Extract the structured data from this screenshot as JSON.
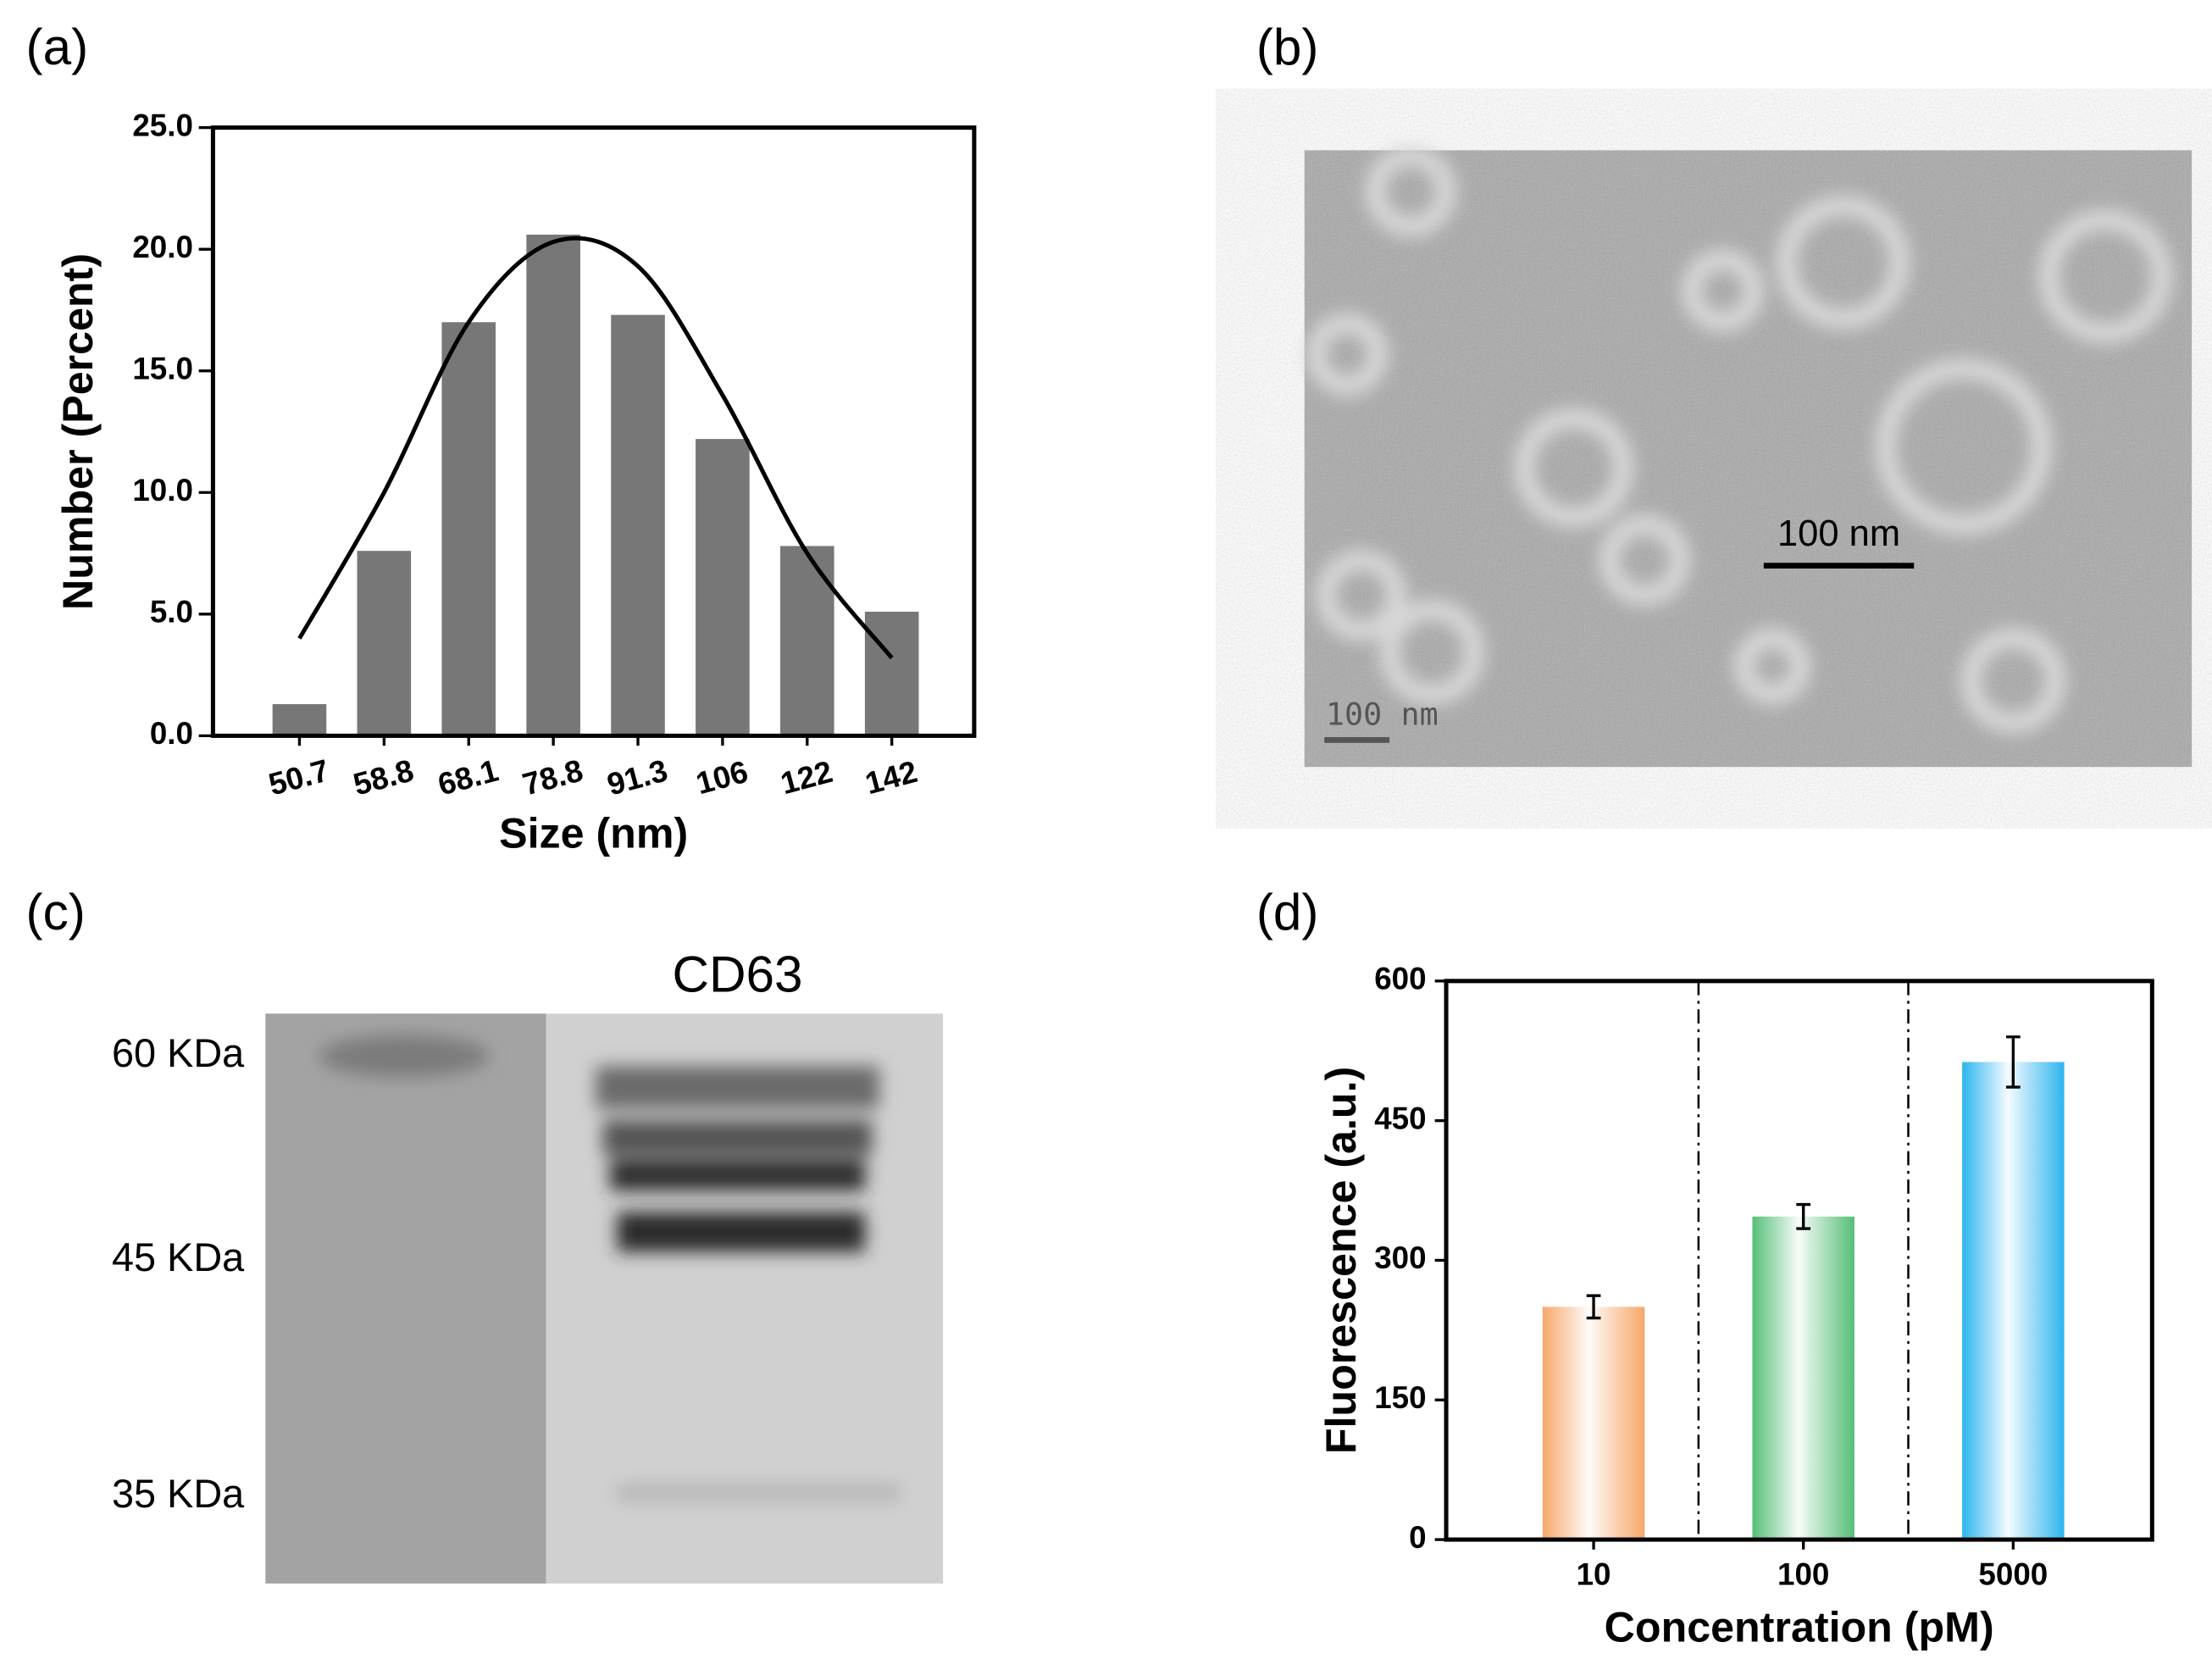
{
  "panel_labels": [
    "(a)",
    "(b)",
    "(c)",
    "(d)"
  ],
  "tem_image": {
    "scale_bar_label": "100 nm",
    "watermark_label": "100 nm"
  },
  "western_blot": {
    "title": "CD63",
    "markers": [
      "60 KDa",
      "45 KDa",
      "35 KDa"
    ]
  },
  "chart_data": [
    {
      "type": "bar",
      "x_label": "Size (nm)",
      "y_label": "Number (Percent)",
      "categories": [
        "50.7",
        "58.8",
        "68.1",
        "78.8",
        "91.3",
        "106",
        "122",
        "142"
      ],
      "series": [
        {
          "type": "bar",
          "color": "#777777",
          "values": [
            1.3,
            7.6,
            17.0,
            20.6,
            17.3,
            12.2,
            7.8,
            5.1
          ]
        },
        {
          "type": "line",
          "color": "#000000",
          "values": [
            4.0,
            10.0,
            17.0,
            20.3,
            19.3,
            14.0,
            7.5,
            3.2
          ]
        }
      ],
      "ylim": [
        0,
        25
      ],
      "yticks": [
        {
          "value": 0,
          "label": "0.0"
        },
        {
          "value": 5,
          "label": "5.0"
        },
        {
          "value": 10,
          "label": "10.0"
        },
        {
          "value": 15,
          "label": "15.0"
        },
        {
          "value": 20,
          "label": "20.0"
        },
        {
          "value": 25,
          "label": "25.0"
        }
      ]
    },
    {
      "type": "bar",
      "x_label": "Concentration (pM)",
      "y_label": "Fluorescence (a.u.)",
      "categories": [
        "10",
        "100",
        "5000"
      ],
      "series": [
        {
          "type": "bar",
          "colors": [
            "#f7a76a",
            "#55bf78",
            "#2db5ef"
          ],
          "values": [
            250,
            347,
            513
          ],
          "errors": [
            12,
            13,
            27
          ]
        }
      ],
      "ylim": [
        0,
        600
      ],
      "yticks": [
        0,
        150,
        300,
        450,
        600
      ]
    }
  ]
}
